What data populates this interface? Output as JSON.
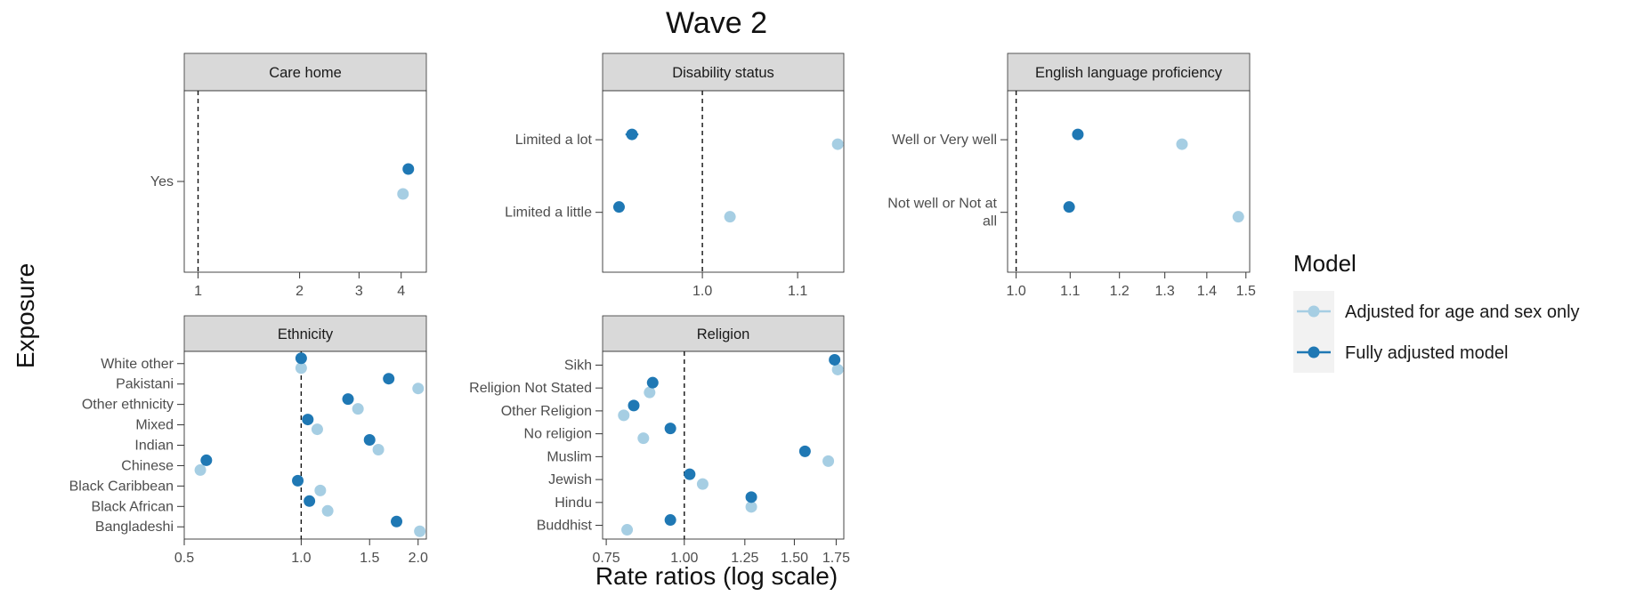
{
  "chart_data": {
    "type": "scatter",
    "title": "Wave 2",
    "xlabel": "Rate ratios (log scale)",
    "ylabel": "Exposure",
    "x_scale": "log",
    "reference_line": 1,
    "grid": false,
    "legend": {
      "title": "Model",
      "position": "right",
      "entries": [
        {
          "name": "Adjusted for age and sex only",
          "color": "#a6cee3"
        },
        {
          "name": "Fully adjusted model",
          "color": "#1f78b4"
        }
      ]
    },
    "panels": [
      {
        "strip": "Care home",
        "xlim": [
          0.91,
          4.75
        ],
        "xticks": [
          {
            "v": 1,
            "label": "1"
          },
          {
            "v": 2,
            "label": "2"
          },
          {
            "v": 3,
            "label": "3"
          },
          {
            "v": 4,
            "label": "4"
          }
        ],
        "categories": [
          "Yes"
        ],
        "series": [
          {
            "name": "Adjusted for age and sex only",
            "values": [
              4.05
            ],
            "errors": [
              0.08
            ]
          },
          {
            "name": "Fully adjusted model",
            "values": [
              4.2
            ],
            "errors": [
              0.08
            ]
          }
        ]
      },
      {
        "strip": "Disability status",
        "xlim": [
          0.905,
          1.152
        ],
        "xticks": [
          {
            "v": 1.0,
            "label": "1.0"
          },
          {
            "v": 1.1,
            "label": "1.1"
          }
        ],
        "categories": [
          "Limited a lot",
          "Limited a little"
        ],
        "series": [
          {
            "name": "Adjusted for age and sex only",
            "values": [
              1.145,
              1.028
            ],
            "errors": [
              0.005,
              0.004
            ]
          },
          {
            "name": "Fully adjusted model",
            "values": [
              0.932,
              0.92
            ],
            "errors": [
              0.006,
              0.005
            ]
          }
        ]
      },
      {
        "strip": "English language proficiency",
        "xlim": [
          0.985,
          1.51
        ],
        "xticks": [
          {
            "v": 1.0,
            "label": "1.0"
          },
          {
            "v": 1.1,
            "label": "1.1"
          },
          {
            "v": 1.2,
            "label": "1.2"
          },
          {
            "v": 1.3,
            "label": "1.3"
          },
          {
            "v": 1.4,
            "label": "1.4"
          },
          {
            "v": 1.5,
            "label": "1.5"
          }
        ],
        "categories": [
          "Well or Very well",
          "Not well or Not at all"
        ],
        "series": [
          {
            "name": "Adjusted for age and sex only",
            "values": [
              1.34,
              1.48
            ],
            "errors": [
              0.005,
              0.008
            ]
          },
          {
            "name": "Fully adjusted model",
            "values": [
              1.115,
              1.098
            ],
            "errors": [
              0.005,
              0.008
            ]
          }
        ]
      },
      {
        "strip": "Ethnicity",
        "xlim": [
          0.5,
          2.1
        ],
        "xticks": [
          {
            "v": 0.5,
            "label": "0.5"
          },
          {
            "v": 1.0,
            "label": "1.0"
          },
          {
            "v": 1.5,
            "label": "1.5"
          },
          {
            "v": 2.0,
            "label": "2.0"
          }
        ],
        "categories": [
          "White other",
          "Pakistani",
          "Other ethnicity",
          "Mixed",
          "Indian",
          "Chinese",
          "Black Caribbean",
          "Black African",
          "Bangladeshi"
        ],
        "series": [
          {
            "name": "Adjusted for age and sex only",
            "values": [
              1.0,
              2.0,
              1.4,
              1.1,
              1.58,
              0.55,
              1.12,
              1.17,
              2.02
            ],
            "errors": [
              0.01,
              0.02,
              0.02,
              0.02,
              0.02,
              0.01,
              0.02,
              0.02,
              0.02
            ]
          },
          {
            "name": "Fully adjusted model",
            "values": [
              1.0,
              1.68,
              1.32,
              1.04,
              1.5,
              0.57,
              0.98,
              1.05,
              1.76
            ],
            "errors": [
              0.01,
              0.02,
              0.02,
              0.02,
              0.02,
              0.01,
              0.02,
              0.02,
              0.02
            ]
          }
        ]
      },
      {
        "strip": "Religion",
        "xlim": [
          0.74,
          1.8
        ],
        "xticks": [
          {
            "v": 0.75,
            "label": "0.75"
          },
          {
            "v": 1.0,
            "label": "1.00"
          },
          {
            "v": 1.25,
            "label": "1.25"
          },
          {
            "v": 1.5,
            "label": "1.50"
          },
          {
            "v": 1.75,
            "label": "1.75"
          }
        ],
        "categories": [
          "Sikh",
          "Religion Not Stated",
          "Other Religion",
          "No religion",
          "Muslim",
          "Jewish",
          "Hindu",
          "Buddhist"
        ],
        "series": [
          {
            "name": "Adjusted for age and sex only",
            "values": [
              1.76,
              0.88,
              0.8,
              0.86,
              1.7,
              1.07,
              1.28,
              0.81
            ],
            "errors": [
              0.01,
              0.01,
              0.01,
              0.01,
              0.01,
              0.01,
              0.01,
              0.01
            ]
          },
          {
            "name": "Fully adjusted model",
            "values": [
              1.74,
              0.89,
              0.83,
              0.95,
              1.56,
              1.02,
              1.28,
              0.95
            ],
            "errors": [
              0.01,
              0.01,
              0.01,
              0.01,
              0.01,
              0.01,
              0.01,
              0.015
            ]
          }
        ]
      }
    ]
  }
}
